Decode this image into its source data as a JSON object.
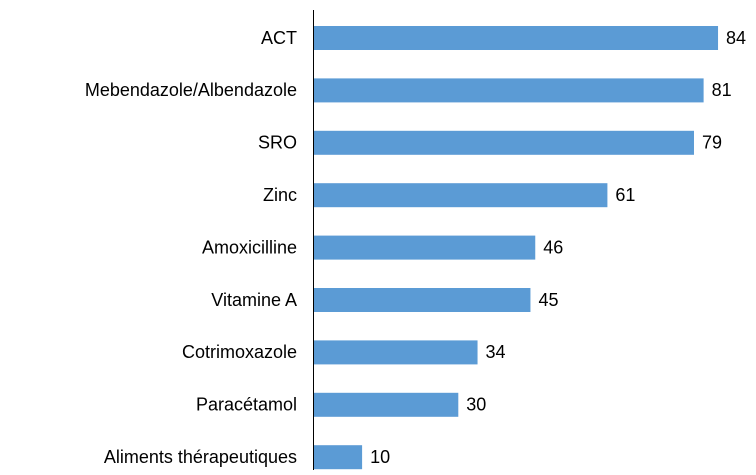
{
  "chart_data": {
    "type": "bar",
    "orientation": "horizontal",
    "categories": [
      "ACT",
      "Mebendazole/Albendazole",
      "SRO",
      "Zinc",
      "Amoxicilline",
      "Vitamine A",
      "Cotrimoxazole",
      "Paracétamol",
      "Aliments thérapeutiques"
    ],
    "values": [
      84,
      81,
      79,
      61,
      46,
      45,
      34,
      30,
      10
    ],
    "color": "#5b9bd5"
  }
}
